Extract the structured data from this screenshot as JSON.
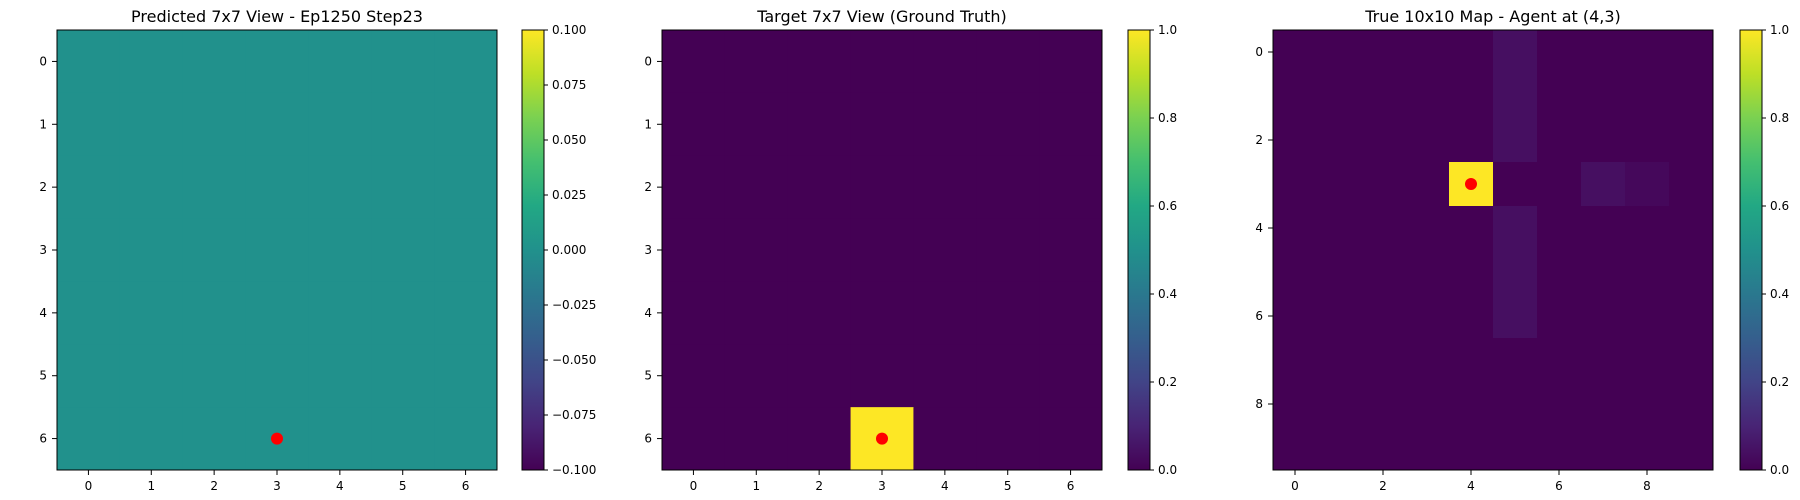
{
  "chart_data": [
    {
      "type": "heatmap",
      "title": "Predicted 7x7 View - Ep1250 Step23",
      "rows": 7,
      "cols": 7,
      "x_ticks": [
        0,
        1,
        2,
        3,
        4,
        5,
        6
      ],
      "y_ticks": [
        0,
        1,
        2,
        3,
        4,
        5,
        6
      ],
      "values": [
        [
          0,
          0,
          0,
          0,
          0,
          0,
          0
        ],
        [
          0,
          0,
          0,
          0,
          0,
          0,
          0
        ],
        [
          0,
          0,
          0,
          0,
          0,
          0,
          0
        ],
        [
          0,
          0,
          0,
          0,
          0,
          0,
          0
        ],
        [
          0,
          0,
          0,
          0,
          0,
          0,
          0
        ],
        [
          0,
          0,
          0,
          0,
          0,
          0,
          0
        ],
        [
          0,
          0,
          0,
          0,
          0,
          0,
          0
        ]
      ],
      "vmin": -0.1,
      "vmax": 0.1,
      "colormap": "viridis",
      "colorbar_ticks": [
        "−0.100",
        "−0.075",
        "−0.050",
        "−0.025",
        "0.000",
        "0.025",
        "0.050",
        "0.075",
        "0.100"
      ],
      "colorbar_tick_values": [
        -0.1,
        -0.075,
        -0.05,
        -0.025,
        0,
        0.025,
        0.05,
        0.075,
        0.1
      ],
      "marker": {
        "x": 3,
        "y": 6,
        "color": "#ff0000"
      }
    },
    {
      "type": "heatmap",
      "title": "Target 7x7 View (Ground Truth)",
      "rows": 7,
      "cols": 7,
      "x_ticks": [
        0,
        1,
        2,
        3,
        4,
        5,
        6
      ],
      "y_ticks": [
        0,
        1,
        2,
        3,
        4,
        5,
        6
      ],
      "values": [
        [
          0,
          0,
          0,
          0,
          0,
          0,
          0
        ],
        [
          0,
          0,
          0,
          0,
          0,
          0,
          0
        ],
        [
          0,
          0,
          0,
          0,
          0,
          0,
          0
        ],
        [
          0,
          0,
          0,
          0,
          0,
          0,
          0
        ],
        [
          0,
          0,
          0,
          0,
          0,
          0,
          0
        ],
        [
          0,
          0,
          0,
          0,
          0,
          0,
          0
        ],
        [
          0,
          0,
          0,
          1,
          0,
          0,
          0
        ]
      ],
      "vmin": 0,
      "vmax": 1,
      "colormap": "viridis",
      "colorbar_ticks": [
        "0.0",
        "0.2",
        "0.4",
        "0.6",
        "0.8",
        "1.0"
      ],
      "colorbar_tick_values": [
        0,
        0.2,
        0.4,
        0.6,
        0.8,
        1.0
      ],
      "marker": {
        "x": 3,
        "y": 6,
        "color": "#ff0000"
      }
    },
    {
      "type": "heatmap",
      "title": "True 10x10 Map - Agent at (4,3)",
      "rows": 10,
      "cols": 10,
      "x_ticks": [
        0,
        2,
        4,
        6,
        8
      ],
      "y_ticks": [
        0,
        2,
        4,
        6,
        8
      ],
      "values": [
        [
          0,
          0,
          0,
          0,
          0,
          0.04,
          0,
          0,
          0,
          0
        ],
        [
          0,
          0,
          0,
          0,
          0,
          0.04,
          0,
          0,
          0,
          0
        ],
        [
          0,
          0,
          0,
          0,
          0,
          0.04,
          0,
          0,
          0,
          0
        ],
        [
          0,
          0,
          0,
          0,
          1,
          0,
          0,
          0.04,
          0.02,
          0
        ],
        [
          0,
          0,
          0,
          0,
          0,
          0.04,
          0,
          0,
          0,
          0
        ],
        [
          0,
          0,
          0,
          0,
          0,
          0.04,
          0,
          0,
          0,
          0
        ],
        [
          0,
          0,
          0,
          0,
          0,
          0.04,
          0,
          0,
          0,
          0
        ],
        [
          0,
          0,
          0,
          0,
          0,
          0,
          0,
          0,
          0,
          0
        ],
        [
          0,
          0,
          0,
          0,
          0,
          0,
          0,
          0,
          0,
          0
        ],
        [
          0,
          0,
          0,
          0,
          0,
          0,
          0,
          0,
          0,
          0
        ]
      ],
      "vmin": 0,
      "vmax": 1,
      "colormap": "viridis",
      "colorbar_ticks": [
        "0.0",
        "0.2",
        "0.4",
        "0.6",
        "0.8",
        "1.0"
      ],
      "colorbar_tick_values": [
        0,
        0.2,
        0.4,
        0.6,
        0.8,
        1.0
      ],
      "marker": {
        "x": 4,
        "y": 3,
        "color": "#ff0000"
      }
    }
  ]
}
